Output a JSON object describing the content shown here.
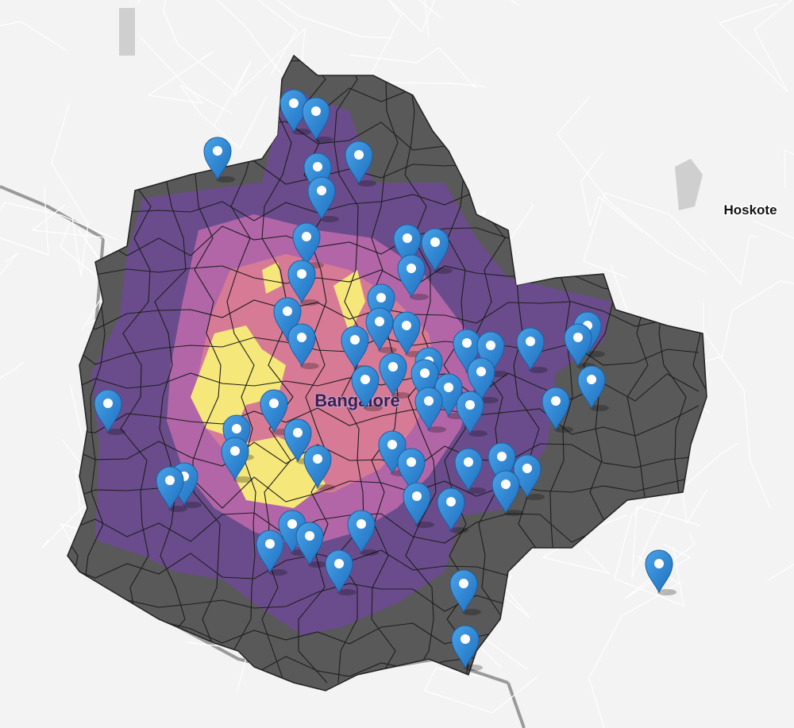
{
  "map": {
    "places": [
      {
        "label": "Hoskote"
      },
      {
        "label": "Bangalore"
      }
    ]
  }
}
